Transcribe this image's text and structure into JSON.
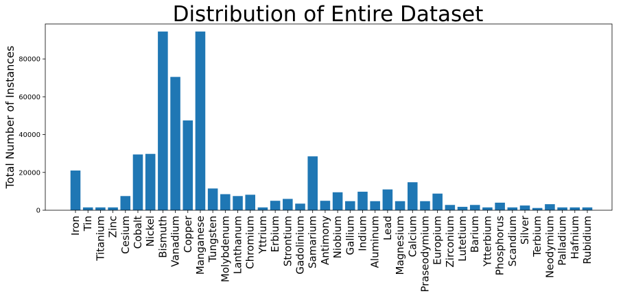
{
  "chart_data": {
    "type": "bar",
    "title": "Distribution of Entire Dataset",
    "xlabel": "",
    "ylabel": "Total Number of Instances",
    "ylim": [
      0,
      98500
    ],
    "yticks": [
      0,
      20000,
      40000,
      60000,
      80000
    ],
    "grid": false,
    "color": "#1f77b4",
    "categories": [
      "Iron",
      "Tin",
      "Titanium",
      "Zinc",
      "Cesium",
      "Cobalt",
      "Nickel",
      "Bismuth",
      "Vanadium",
      "Copper",
      "Manganese",
      "Tungsten",
      "Molybdenum",
      "Lanthanum",
      "Chromium",
      "Yttrium",
      "Erbium",
      "Strontium",
      "Gadolinium",
      "Samarium",
      "Antimony",
      "Niobium",
      "Gallium",
      "Indium",
      "Aluminum",
      "Lead",
      "Magnesium",
      "Calcium",
      "Praseodymium",
      "Europium",
      "Zirconium",
      "Lutetium",
      "Barium",
      "Ytterbium",
      "Phosphorus",
      "Scandium",
      "Silver",
      "Terbium",
      "Neodymium",
      "Palladium",
      "Hafnium",
      "Rubidium"
    ],
    "values": [
      21000,
      1500,
      1500,
      1500,
      7500,
      29500,
      29800,
      94500,
      70500,
      47500,
      94500,
      11500,
      8500,
      7500,
      8200,
      1500,
      5000,
      6000,
      3500,
      28500,
      5000,
      9500,
      4800,
      9800,
      4800,
      11000,
      4800,
      14800,
      4800,
      8800,
      2800,
      1800,
      2800,
      1500,
      4000,
      1500,
      2500,
      1200,
      3200,
      1500,
      1500,
      1500
    ]
  }
}
